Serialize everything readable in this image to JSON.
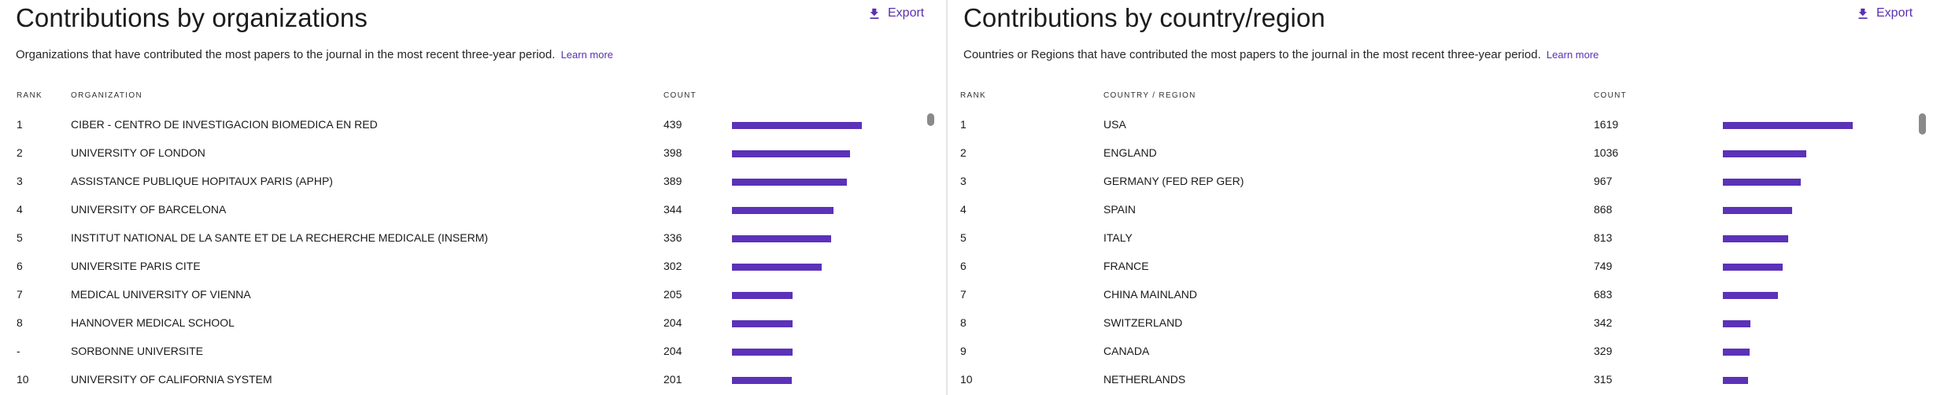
{
  "left": {
    "title": "Contributions by organizations",
    "export_label": "Export",
    "description": "Organizations that have contributed the most papers to the journal in the most recent three-year period.",
    "learn_more": "Learn more",
    "headers": {
      "rank": "RANK",
      "name": "ORGANIZATION",
      "count": "COUNT"
    },
    "max_count": 439,
    "rows": [
      {
        "rank": "1",
        "name": "CIBER - CENTRO DE INVESTIGACION BIOMEDICA EN RED",
        "count": "439",
        "value": 439
      },
      {
        "rank": "2",
        "name": "UNIVERSITY OF LONDON",
        "count": "398",
        "value": 398
      },
      {
        "rank": "3",
        "name": "ASSISTANCE PUBLIQUE HOPITAUX PARIS (APHP)",
        "count": "389",
        "value": 389
      },
      {
        "rank": "4",
        "name": "UNIVERSITY OF BARCELONA",
        "count": "344",
        "value": 344
      },
      {
        "rank": "5",
        "name": "INSTITUT NATIONAL DE LA SANTE ET DE LA RECHERCHE MEDICALE (INSERM)",
        "count": "336",
        "value": 336
      },
      {
        "rank": "6",
        "name": "UNIVERSITE PARIS CITE",
        "count": "302",
        "value": 302
      },
      {
        "rank": "7",
        "name": "MEDICAL UNIVERSITY OF VIENNA",
        "count": "205",
        "value": 205
      },
      {
        "rank": "8",
        "name": "HANNOVER MEDICAL SCHOOL",
        "count": "204",
        "value": 204
      },
      {
        "rank": "-",
        "name": "SORBONNE UNIVERSITE",
        "count": "204",
        "value": 204
      },
      {
        "rank": "10",
        "name": "UNIVERSITY OF CALIFORNIA SYSTEM",
        "count": "201",
        "value": 201
      }
    ]
  },
  "right": {
    "title": "Contributions by country/region",
    "export_label": "Export",
    "description": "Countries or Regions that have contributed the most papers to the journal in the most recent three-year period.",
    "learn_more": "Learn more",
    "headers": {
      "rank": "RANK",
      "name": "COUNTRY / REGION",
      "count": "COUNT"
    },
    "max_count": 1619,
    "rows": [
      {
        "rank": "1",
        "name": "USA",
        "count": "1619",
        "value": 1619
      },
      {
        "rank": "2",
        "name": "ENGLAND",
        "count": "1036",
        "value": 1036
      },
      {
        "rank": "3",
        "name": "GERMANY (FED REP GER)",
        "count": "967",
        "value": 967
      },
      {
        "rank": "4",
        "name": "SPAIN",
        "count": "868",
        "value": 868
      },
      {
        "rank": "5",
        "name": "ITALY",
        "count": "813",
        "value": 813
      },
      {
        "rank": "6",
        "name": "FRANCE",
        "count": "749",
        "value": 749
      },
      {
        "rank": "7",
        "name": "CHINA MAINLAND",
        "count": "683",
        "value": 683
      },
      {
        "rank": "8",
        "name": "SWITZERLAND",
        "count": "342",
        "value": 342
      },
      {
        "rank": "9",
        "name": "CANADA",
        "count": "329",
        "value": 329
      },
      {
        "rank": "10",
        "name": "NETHERLANDS",
        "count": "315",
        "value": 315
      }
    ]
  },
  "colors": {
    "accent": "#5b2fb0",
    "bar": "#5b32b8"
  },
  "icons": {
    "export": "download-icon"
  }
}
